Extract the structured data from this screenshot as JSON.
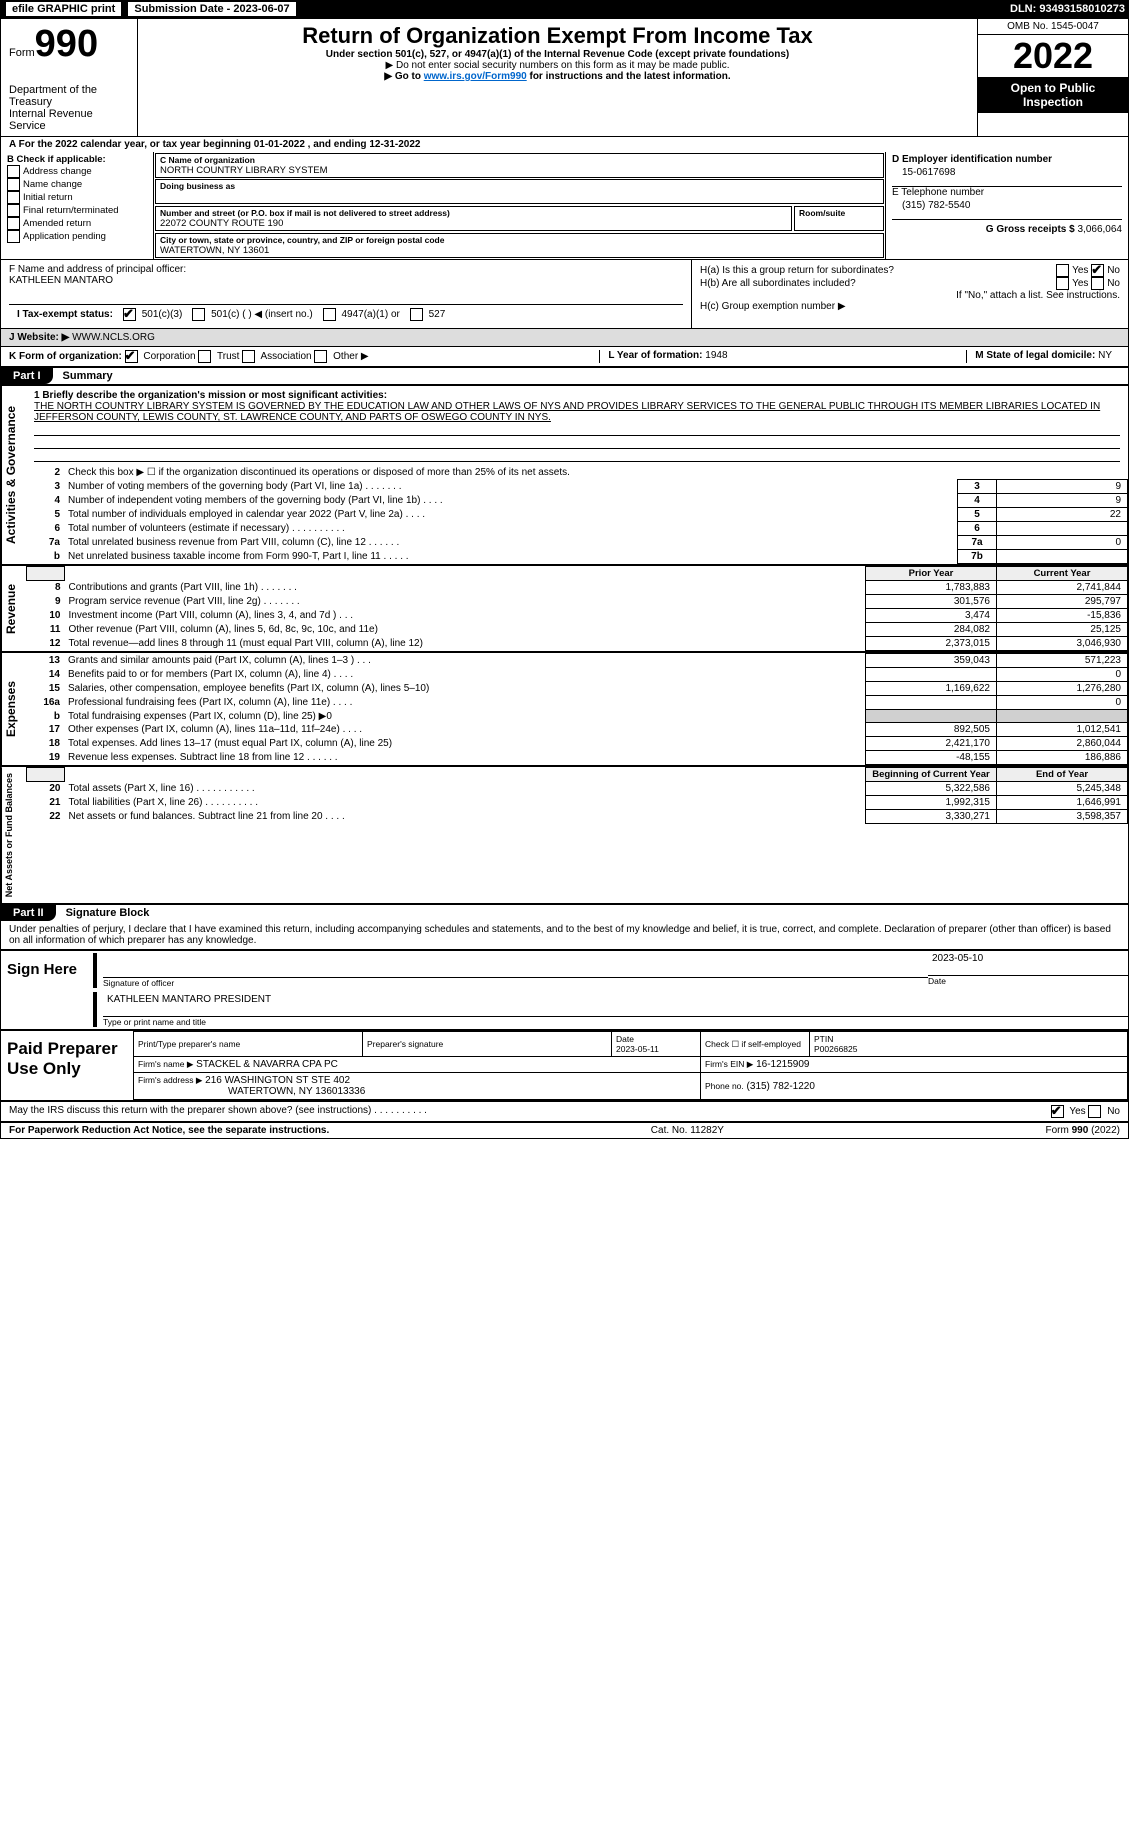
{
  "topbar": {
    "efile": "efile GRAPHIC print",
    "sub_label": "Submission Date - 2023-06-07",
    "dln": "DLN: 93493158010273"
  },
  "header": {
    "form_word": "Form",
    "form_no": "990",
    "title": "Return of Organization Exempt From Income Tax",
    "sub1": "Under section 501(c), 527, or 4947(a)(1) of the Internal Revenue Code (except private foundations)",
    "sub2": "▶ Do not enter social security numbers on this form as it may be made public.",
    "sub3_prefix": "▶ Go to ",
    "sub3_link": "www.irs.gov/Form990",
    "sub3_suffix": " for instructions and the latest information.",
    "omb": "OMB No. 1545-0047",
    "year": "2022",
    "open": "Open to Public Inspection",
    "dept": "Department of the Treasury",
    "irs": "Internal Revenue Service"
  },
  "lineA": "A For the 2022 calendar year, or tax year beginning 01-01-2022    , and ending 12-31-2022",
  "boxB": {
    "label": "B Check if applicable:",
    "opts": [
      "Address change",
      "Name change",
      "Initial return",
      "Final return/terminated",
      "Amended return",
      "Application pending"
    ]
  },
  "boxC": {
    "name_label": "C Name of organization",
    "name": "NORTH COUNTRY LIBRARY SYSTEM",
    "dba_label": "Doing business as",
    "street_label": "Number and street (or P.O. box if mail is not delivered to street address)",
    "room_label": "Room/suite",
    "street": "22072 COUNTY ROUTE 190",
    "city_label": "City or town, state or province, country, and ZIP or foreign postal code",
    "city": "WATERTOWN, NY  13601"
  },
  "boxD": {
    "label": "D Employer identification number",
    "val": "15-0617698"
  },
  "boxE": {
    "label": "E Telephone number",
    "val": "(315) 782-5540"
  },
  "boxG": {
    "label": "G Gross receipts $",
    "val": "3,066,064"
  },
  "boxF": {
    "label": "F  Name and address of principal officer:",
    "val": "KATHLEEN MANTARO"
  },
  "boxH": {
    "a": "H(a)  Is this a group return for subordinates?",
    "b": "H(b)  Are all subordinates included?",
    "b2": "If \"No,\" attach a list. See instructions.",
    "c": "H(c)  Group exemption number ▶",
    "yes": "Yes",
    "no": "No"
  },
  "taxI": {
    "label": "I  Tax-exempt status:",
    "o1": "501(c)(3)",
    "o2": "501(c) (   ) ◀ (insert no.)",
    "o3": "4947(a)(1) or",
    "o4": "527"
  },
  "boxJ": {
    "label": "J  Website: ▶",
    "val": "WWW.NCLS.ORG"
  },
  "boxK": {
    "label": "K Form of organization:",
    "o1": "Corporation",
    "o2": "Trust",
    "o3": "Association",
    "o4": "Other ▶",
    "l_label": "L Year of formation:",
    "l_val": "1948",
    "m_label": "M State of legal domicile:",
    "m_val": "NY"
  },
  "partI": {
    "tab": "Part I",
    "label": "Summary"
  },
  "summary": {
    "line1_label": "1  Briefly describe the organization's mission or most significant activities:",
    "mission": "THE NORTH COUNTRY LIBRARY SYSTEM IS GOVERNED BY THE EDUCATION LAW AND OTHER LAWS OF NYS AND PROVIDES LIBRARY SERVICES TO THE GENERAL PUBLIC THROUGH ITS MEMBER LIBRARIES LOCATED IN JEFFERSON COUNTY, LEWIS COUNTY, ST. LAWRENCE COUNTY, AND PARTS OF OSWEGO COUNTY IN NYS."
  },
  "vtabs": {
    "gov": "Activities & Governance",
    "rev": "Revenue",
    "exp": "Expenses",
    "net": "Net Assets or Fund Balances"
  },
  "gov": {
    "l2": "Check this box ▶ ☐  if the organization discontinued its operations or disposed of more than 25% of its net assets.",
    "rows": [
      {
        "n": "3",
        "t": "Number of voting members of the governing body (Part VI, line 1a)   .    .    .    .    .    .    .",
        "bn": "3",
        "v": "9"
      },
      {
        "n": "4",
        "t": "Number of independent voting members of the governing body (Part VI, line 1b)   .    .    .    .",
        "bn": "4",
        "v": "9"
      },
      {
        "n": "5",
        "t": "Total number of individuals employed in calendar year 2022 (Part V, line 2a)   .    .    .    .",
        "bn": "5",
        "v": "22"
      },
      {
        "n": "6",
        "t": "Total number of volunteers (estimate if necessary)   .    .    .    .    .    .    .    .    .    .",
        "bn": "6",
        "v": ""
      },
      {
        "n": "7a",
        "t": "Total unrelated business revenue from Part VIII, column (C), line 12   .    .    .    .    .    .",
        "bn": "7a",
        "v": "0"
      },
      {
        "n": "b",
        "t": "Net unrelated business taxable income from Form 990-T, Part I, line 11   .    .    .    .    .",
        "bn": "7b",
        "v": ""
      }
    ]
  },
  "yearhdr": {
    "prior": "Prior Year",
    "curr": "Current Year"
  },
  "rev": [
    {
      "n": "8",
      "t": "Contributions and grants (Part VIII, line 1h)   .    .    .    .    .    .    .",
      "p": "1,783,883",
      "c": "2,741,844"
    },
    {
      "n": "9",
      "t": "Program service revenue (Part VIII, line 2g)   .    .    .    .    .    .    .",
      "p": "301,576",
      "c": "295,797"
    },
    {
      "n": "10",
      "t": "Investment income (Part VIII, column (A), lines 3, 4, and 7d )   .    .    .",
      "p": "3,474",
      "c": "-15,836"
    },
    {
      "n": "11",
      "t": "Other revenue (Part VIII, column (A), lines 5, 6d, 8c, 9c, 10c, and 11e)",
      "p": "284,082",
      "c": "25,125"
    },
    {
      "n": "12",
      "t": "Total revenue—add lines 8 through 11 (must equal Part VIII, column (A), line 12)",
      "p": "2,373,015",
      "c": "3,046,930"
    }
  ],
  "exp": [
    {
      "n": "13",
      "t": "Grants and similar amounts paid (Part IX, column (A), lines 1–3 )   .    .    .",
      "p": "359,043",
      "c": "571,223"
    },
    {
      "n": "14",
      "t": "Benefits paid to or for members (Part IX, column (A), line 4)   .    .    .    .",
      "p": "",
      "c": "0"
    },
    {
      "n": "15",
      "t": "Salaries, other compensation, employee benefits (Part IX, column (A), lines 5–10)",
      "p": "1,169,622",
      "c": "1,276,280"
    },
    {
      "n": "16a",
      "t": "Professional fundraising fees (Part IX, column (A), line 11e)   .    .    .    .",
      "p": "",
      "c": "0"
    },
    {
      "n": "b",
      "t": "Total fundraising expenses (Part IX, column (D), line 25) ▶0",
      "p": "GREY",
      "c": "GREY"
    },
    {
      "n": "17",
      "t": "Other expenses (Part IX, column (A), lines 11a–11d, 11f–24e)   .    .    .    .",
      "p": "892,505",
      "c": "1,012,541"
    },
    {
      "n": "18",
      "t": "Total expenses. Add lines 13–17 (must equal Part IX, column (A), line 25)",
      "p": "2,421,170",
      "c": "2,860,044"
    },
    {
      "n": "19",
      "t": "Revenue less expenses. Subtract line 18 from line 12   .    .    .    .    .    .",
      "p": "-48,155",
      "c": "186,886"
    }
  ],
  "nethdr": {
    "prior": "Beginning of Current Year",
    "curr": "End of Year"
  },
  "net": [
    {
      "n": "20",
      "t": "Total assets (Part X, line 16)   .    .    .    .    .    .    .    .    .    .    .",
      "p": "5,322,586",
      "c": "5,245,348"
    },
    {
      "n": "21",
      "t": "Total liabilities (Part X, line 26)   .    .    .    .    .    .    .    .    .    .",
      "p": "1,992,315",
      "c": "1,646,991"
    },
    {
      "n": "22",
      "t": "Net assets or fund balances. Subtract line 21 from line 20   .    .    .    .",
      "p": "3,330,271",
      "c": "3,598,357"
    }
  ],
  "partII": {
    "tab": "Part II",
    "label": "Signature Block"
  },
  "perjury": "Under penalties of perjury, I declare that I have examined this return, including accompanying schedules and statements, and to the best of my knowledge and belief, it is true, correct, and complete. Declaration of preparer (other than officer) is based on all information of which preparer has any knowledge.",
  "sign": {
    "here": "Sign Here",
    "sig_label": "Signature of officer",
    "date_label": "Date",
    "date": "2023-05-10",
    "name": "KATHLEEN MANTARO  PRESIDENT",
    "name_label": "Type or print name and title"
  },
  "paid": {
    "left": "Paid Preparer Use Only",
    "h1": "Print/Type preparer's name",
    "h2": "Preparer's signature",
    "h3": "Date",
    "date": "2023-05-11",
    "h4": "Check ☐ if self-employed",
    "h5": "PTIN",
    "ptin": "P00266825",
    "firm_label": "Firm's name    ▶",
    "firm": "STACKEL & NAVARRA CPA PC",
    "ein_label": "Firm's EIN ▶",
    "ein": "16-1215909",
    "addr_label": "Firm's address ▶",
    "addr1": "216 WASHINGTON ST STE 402",
    "addr2": "WATERTOWN, NY  136013336",
    "phone_label": "Phone no.",
    "phone": "(315) 782-1220"
  },
  "may": {
    "q": "May the IRS discuss this return with the preparer shown above? (see instructions)   .    .    .    .    .    .    .    .    .    .",
    "yes": "Yes",
    "no": "No"
  },
  "footer": {
    "l": "For Paperwork Reduction Act Notice, see the separate instructions.",
    "m": "Cat. No. 11282Y",
    "r": "Form 990 (2022)"
  }
}
